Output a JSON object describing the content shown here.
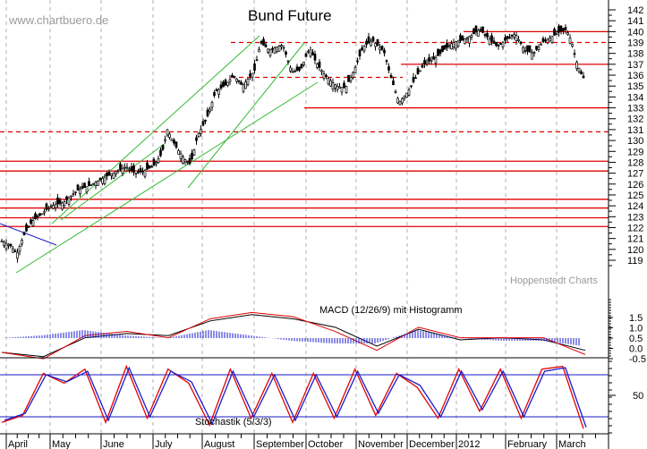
{
  "header": {
    "watermark": "www.chartbuero.de",
    "title": "Bund Future",
    "credit": "Hoppenstedt Charts"
  },
  "panels": {
    "macd_label": "MACD (12/26/9) mit Histogramm",
    "stoch_label": "Stochastik (5/3/3)"
  },
  "colors": {
    "price": "#000000",
    "resistance": "#e00000",
    "trendline": "#33bb33",
    "blue_trend": "#1a1acc",
    "macd_line": "#000000",
    "signal_line": "#e00000",
    "histogram": "#1a1acc",
    "stoch_k": "#1a1acc",
    "stoch_d": "#e00000",
    "grid": "#b0b0b0"
  },
  "chart_data": [
    {
      "type": "candlestick",
      "title": "Bund Future",
      "xlabel": "",
      "ylabel": "",
      "x_ticks": [
        "April",
        "May",
        "June",
        "July",
        "August",
        "September",
        "October",
        "November",
        "December",
        "2012",
        "February",
        "March"
      ],
      "y_ticks": [
        119,
        120,
        121,
        122,
        123,
        124,
        125,
        126,
        127,
        128,
        129,
        130,
        131,
        132,
        133,
        134,
        135,
        136,
        137,
        138,
        139,
        140,
        141,
        142
      ],
      "ylim": [
        118.5,
        142.5
      ],
      "grid": "vertical dashed at month boundaries",
      "approx_close_by_month": {
        "April": 120.5,
        "May": 124.0,
        "June": 126.0,
        "July": 128.5,
        "August": 134.5,
        "September": 138.0,
        "October": 135.0,
        "November": 135.0,
        "December": 138.0,
        "2012": 139.5,
        "February": 139.0,
        "March": 135.5
      },
      "horizontal_levels": [
        {
          "value": 140.0,
          "style": "solid",
          "from": "2012"
        },
        {
          "value": 139.0,
          "style": "dashed",
          "from": "August"
        },
        {
          "value": 137.0,
          "style": "solid",
          "from": "November"
        },
        {
          "value": 135.8,
          "style": "dashed",
          "from": "August",
          "to": "November"
        },
        {
          "value": 133.0,
          "style": "solid",
          "from": "October"
        },
        {
          "value": 130.8,
          "style": "dashed",
          "from": "start"
        },
        {
          "value": 128.1,
          "style": "solid",
          "from": "start"
        },
        {
          "value": 127.2,
          "style": "solid",
          "from": "start"
        },
        {
          "value": 124.6,
          "style": "solid",
          "from": "start"
        },
        {
          "value": 123.8,
          "style": "solid",
          "from": "start"
        },
        {
          "value": 122.9,
          "style": "solid",
          "from": "start"
        },
        {
          "value": 122.1,
          "style": "solid",
          "from": "start"
        }
      ],
      "annotations": [
        "www.chartbuero.de",
        "Hoppenstedt Charts",
        "green uptrend lines",
        "blue downtrend line (April-May)"
      ]
    },
    {
      "type": "line",
      "title": "MACD (12/26/9) mit Histogramm",
      "y_ticks": [
        -0.5,
        0.0,
        0.5,
        1.0,
        1.5
      ],
      "ylim": [
        -0.7,
        1.7
      ],
      "series": [
        {
          "name": "MACD",
          "values": [
            -0.3,
            -0.5,
            0.4,
            0.6,
            0.5,
            1.2,
            1.5,
            1.3,
            0.9,
            0.0,
            0.8,
            0.3,
            0.4,
            0.3,
            -0.2
          ]
        },
        {
          "name": "Signal",
          "values": [
            -0.3,
            -0.6,
            0.5,
            0.7,
            0.4,
            1.3,
            1.6,
            1.4,
            0.7,
            -0.2,
            0.9,
            0.4,
            0.4,
            0.4,
            -0.4
          ]
        },
        {
          "name": "Histogram",
          "values": [
            0.0,
            0.1,
            0.3,
            0.1,
            0.0,
            0.3,
            0.1,
            -0.1,
            -0.2,
            -0.2,
            0.3,
            0.0,
            -0.1,
            -0.1,
            -0.3
          ]
        }
      ]
    },
    {
      "type": "line",
      "title": "Stochastik (5/3/3)",
      "y_ticks": [
        50
      ],
      "ylim": [
        0,
        100
      ],
      "reference_levels": [
        80,
        20
      ],
      "series": [
        {
          "name": "%K",
          "values": [
            15,
            25,
            80,
            70,
            85,
            15,
            90,
            20,
            85,
            70,
            10,
            85,
            20,
            80,
            15,
            80,
            20,
            85,
            25,
            80,
            65,
            20,
            85,
            30,
            85,
            20,
            85,
            90,
            5
          ]
        },
        {
          "name": "%D",
          "values": [
            12,
            22,
            82,
            68,
            88,
            12,
            92,
            18,
            88,
            68,
            8,
            88,
            18,
            82,
            12,
            82,
            18,
            88,
            22,
            82,
            62,
            18,
            88,
            28,
            88,
            18,
            88,
            92,
            3
          ]
        }
      ]
    }
  ],
  "axes": {
    "price_ticks": [
      "142",
      "141",
      "140",
      "139",
      "138",
      "137",
      "136",
      "135",
      "134",
      "133",
      "132",
      "131",
      "130",
      "129",
      "128",
      "127",
      "126",
      "125",
      "124",
      "123",
      "122",
      "121",
      "120",
      "119"
    ],
    "macd_ticks": [
      "1.5",
      "1.0",
      "0.5",
      "0.0",
      "-0.5"
    ],
    "stoch_ticks": [
      "50"
    ],
    "months": [
      "April",
      "May",
      "June",
      "July",
      "August",
      "September",
      "October",
      "November",
      "December",
      "2012",
      "February",
      "March"
    ]
  }
}
